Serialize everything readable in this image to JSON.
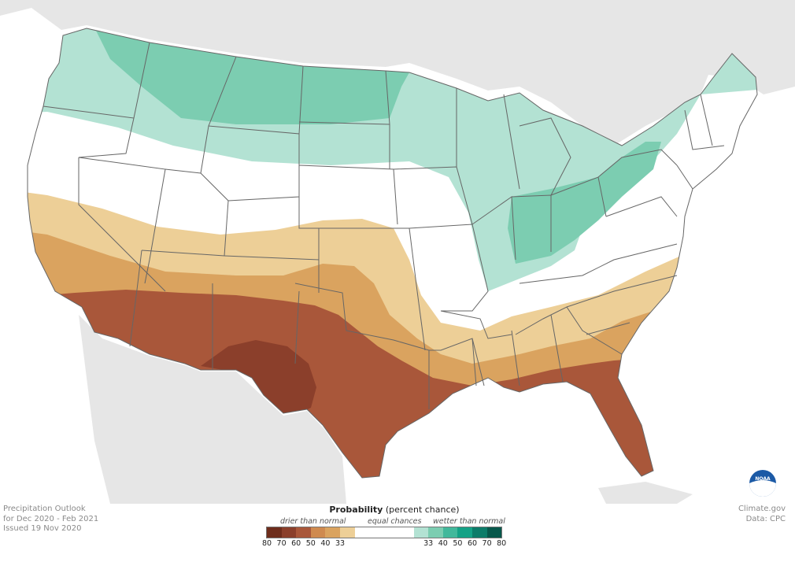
{
  "map": {
    "region": "Contiguous United States",
    "categories": {
      "below": [
        {
          "label": "80",
          "color": "#6e2d1c"
        },
        {
          "label": "70",
          "color": "#8b3f2b"
        },
        {
          "label": "60",
          "color": "#a9573a"
        },
        {
          "label": "50",
          "color": "#cf8a4f"
        },
        {
          "label": "40",
          "color": "#daa35f"
        },
        {
          "label": "33",
          "color": "#edcf97"
        }
      ],
      "equal": {
        "color": "#ffffff"
      },
      "above": [
        {
          "label": "33",
          "color": "#b3e2d3"
        },
        {
          "label": "40",
          "color": "#7ccdb1"
        },
        {
          "label": "50",
          "color": "#42b89b"
        },
        {
          "label": "60",
          "color": "#15a286"
        },
        {
          "label": "70",
          "color": "#0c7c69"
        },
        {
          "label": "80",
          "color": "#07584b"
        }
      ]
    },
    "logo": "noaa-logo"
  },
  "info": {
    "title": "Precipitation Outlook",
    "period": "for Dec 2020 - Feb 2021",
    "issued": "Issued 19 Nov 2020"
  },
  "credits": {
    "site": "Climate.gov",
    "data": "Data: CPC"
  },
  "legend": {
    "title_bold": "Probability",
    "title_rest": " (percent chance)",
    "drier": "drier than normal",
    "equal": "equal chances",
    "wetter": "wetter than normal",
    "ticks_below": [
      "80",
      "70",
      "60",
      "50",
      "40",
      "33"
    ],
    "ticks_above": [
      "33",
      "40",
      "50",
      "60",
      "70",
      "80"
    ]
  }
}
